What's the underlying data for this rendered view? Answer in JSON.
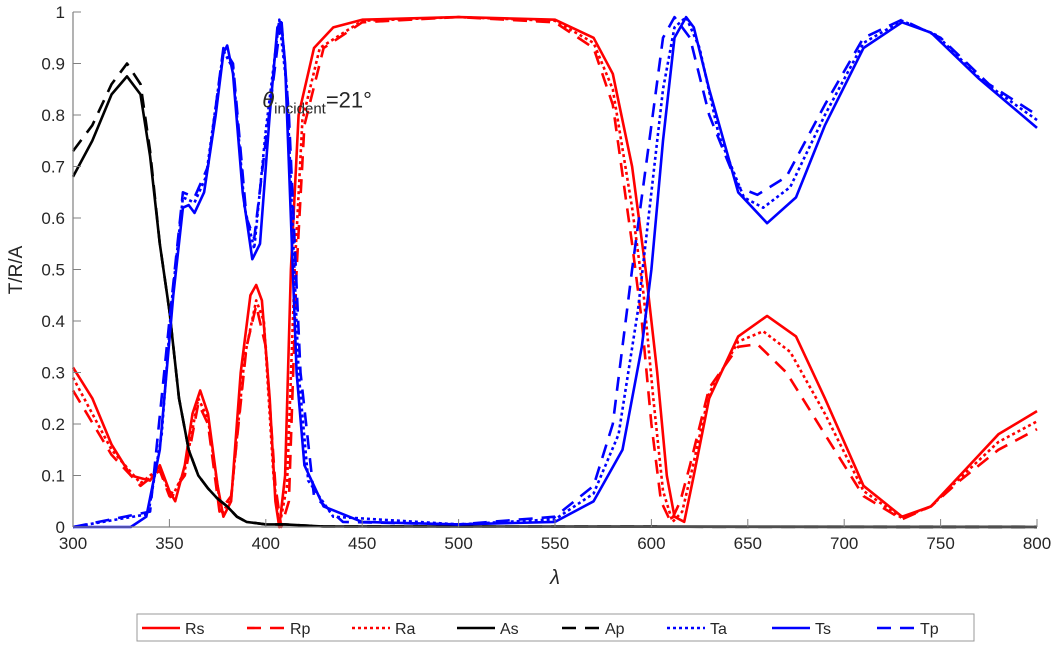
{
  "chart_data": {
    "type": "line",
    "title": "",
    "xlabel": "λ",
    "ylabel": "T/R/A",
    "xlim": [
      300,
      800
    ],
    "ylim": [
      0,
      1
    ],
    "xticks": [
      300,
      350,
      400,
      450,
      500,
      550,
      600,
      650,
      700,
      750,
      800
    ],
    "yticks": [
      0,
      0.1,
      0.2,
      0.3,
      0.4,
      0.5,
      0.6,
      0.7,
      0.8,
      0.9,
      1
    ],
    "ytick_labels": [
      "0",
      "0.1",
      "0.2",
      "0.3",
      "0.4",
      "0.5",
      "0.6",
      "0.7",
      "0.8",
      "0.9",
      "1"
    ],
    "grid": false,
    "legend_placement": "bottom-outside",
    "annotation": {
      "prefix": "θ",
      "subscript": "incident",
      "suffix": "=21°",
      "x": 450,
      "y": 0.83
    },
    "series": [
      {
        "name": "Rs",
        "color": "#ff0000",
        "style": "solid",
        "points": [
          [
            300,
            0.31
          ],
          [
            310,
            0.25
          ],
          [
            320,
            0.16
          ],
          [
            330,
            0.1
          ],
          [
            340,
            0.09
          ],
          [
            345,
            0.12
          ],
          [
            350,
            0.07
          ],
          [
            353,
            0.05
          ],
          [
            358,
            0.12
          ],
          [
            362,
            0.22
          ],
          [
            366,
            0.265
          ],
          [
            370,
            0.22
          ],
          [
            375,
            0.08
          ],
          [
            378,
            0.02
          ],
          [
            382,
            0.05
          ],
          [
            387,
            0.3
          ],
          [
            392,
            0.45
          ],
          [
            395,
            0.47
          ],
          [
            398,
            0.44
          ],
          [
            402,
            0.25
          ],
          [
            405,
            0.05
          ],
          [
            407,
            0.0
          ],
          [
            410,
            0.1
          ],
          [
            413,
            0.5
          ],
          [
            417,
            0.8
          ],
          [
            425,
            0.93
          ],
          [
            435,
            0.97
          ],
          [
            450,
            0.985
          ],
          [
            500,
            0.99
          ],
          [
            550,
            0.985
          ],
          [
            570,
            0.95
          ],
          [
            580,
            0.88
          ],
          [
            590,
            0.7
          ],
          [
            597,
            0.5
          ],
          [
            603,
            0.3
          ],
          [
            608,
            0.1
          ],
          [
            612,
            0.02
          ],
          [
            617,
            0.01
          ],
          [
            622,
            0.1
          ],
          [
            630,
            0.25
          ],
          [
            645,
            0.37
          ],
          [
            660,
            0.41
          ],
          [
            675,
            0.37
          ],
          [
            690,
            0.25
          ],
          [
            710,
            0.08
          ],
          [
            730,
            0.02
          ],
          [
            745,
            0.04
          ],
          [
            760,
            0.1
          ],
          [
            780,
            0.18
          ],
          [
            800,
            0.225
          ]
        ]
      },
      {
        "name": "Rp",
        "color": "#ff0000",
        "style": "dashed",
        "points": [
          [
            300,
            0.265
          ],
          [
            320,
            0.14
          ],
          [
            335,
            0.08
          ],
          [
            345,
            0.11
          ],
          [
            350,
            0.06
          ],
          [
            358,
            0.1
          ],
          [
            365,
            0.24
          ],
          [
            370,
            0.2
          ],
          [
            376,
            0.03
          ],
          [
            382,
            0.06
          ],
          [
            390,
            0.35
          ],
          [
            395,
            0.43
          ],
          [
            400,
            0.35
          ],
          [
            405,
            0.08
          ],
          [
            408,
            0.0
          ],
          [
            412,
            0.05
          ],
          [
            416,
            0.5
          ],
          [
            420,
            0.78
          ],
          [
            430,
            0.93
          ],
          [
            450,
            0.98
          ],
          [
            500,
            0.99
          ],
          [
            550,
            0.98
          ],
          [
            570,
            0.93
          ],
          [
            580,
            0.82
          ],
          [
            590,
            0.55
          ],
          [
            595,
            0.4
          ],
          [
            600,
            0.2
          ],
          [
            605,
            0.05
          ],
          [
            610,
            0.01
          ],
          [
            615,
            0.05
          ],
          [
            620,
            0.12
          ],
          [
            630,
            0.27
          ],
          [
            645,
            0.35
          ],
          [
            655,
            0.355
          ],
          [
            670,
            0.3
          ],
          [
            690,
            0.18
          ],
          [
            710,
            0.06
          ],
          [
            730,
            0.015
          ],
          [
            745,
            0.04
          ],
          [
            760,
            0.09
          ],
          [
            780,
            0.15
          ],
          [
            800,
            0.19
          ]
        ]
      },
      {
        "name": "Ra",
        "color": "#ff0000",
        "style": "dotted",
        "points": [
          [
            300,
            0.29
          ],
          [
            320,
            0.15
          ],
          [
            335,
            0.085
          ],
          [
            345,
            0.115
          ],
          [
            351,
            0.055
          ],
          [
            358,
            0.11
          ],
          [
            365,
            0.25
          ],
          [
            370,
            0.21
          ],
          [
            377,
            0.025
          ],
          [
            382,
            0.055
          ],
          [
            389,
            0.33
          ],
          [
            395,
            0.44
          ],
          [
            399,
            0.4
          ],
          [
            404,
            0.1
          ],
          [
            407,
            0.0
          ],
          [
            411,
            0.08
          ],
          [
            415,
            0.5
          ],
          [
            419,
            0.79
          ],
          [
            428,
            0.93
          ],
          [
            450,
            0.983
          ],
          [
            500,
            0.99
          ],
          [
            550,
            0.983
          ],
          [
            570,
            0.94
          ],
          [
            580,
            0.85
          ],
          [
            590,
            0.62
          ],
          [
            596,
            0.45
          ],
          [
            601,
            0.25
          ],
          [
            606,
            0.07
          ],
          [
            611,
            0.01
          ],
          [
            616,
            0.03
          ],
          [
            621,
            0.11
          ],
          [
            630,
            0.26
          ],
          [
            645,
            0.36
          ],
          [
            658,
            0.38
          ],
          [
            672,
            0.34
          ],
          [
            690,
            0.22
          ],
          [
            710,
            0.07
          ],
          [
            730,
            0.017
          ],
          [
            745,
            0.04
          ],
          [
            760,
            0.095
          ],
          [
            780,
            0.165
          ],
          [
            800,
            0.205
          ]
        ]
      },
      {
        "name": "As",
        "color": "#000000",
        "style": "solid",
        "points": [
          [
            300,
            0.68
          ],
          [
            310,
            0.75
          ],
          [
            320,
            0.84
          ],
          [
            328,
            0.875
          ],
          [
            335,
            0.84
          ],
          [
            340,
            0.72
          ],
          [
            345,
            0.55
          ],
          [
            350,
            0.42
          ],
          [
            355,
            0.25
          ],
          [
            360,
            0.15
          ],
          [
            365,
            0.1
          ],
          [
            370,
            0.075
          ],
          [
            375,
            0.055
          ],
          [
            380,
            0.04
          ],
          [
            385,
            0.02
          ],
          [
            390,
            0.01
          ],
          [
            400,
            0.005
          ],
          [
            410,
            0.005
          ],
          [
            430,
            0.001
          ],
          [
            800,
            0
          ]
        ]
      },
      {
        "name": "Ap",
        "color": "#000000",
        "style": "dashed",
        "points": [
          [
            300,
            0.73
          ],
          [
            310,
            0.78
          ],
          [
            320,
            0.86
          ],
          [
            328,
            0.9
          ],
          [
            335,
            0.86
          ],
          [
            340,
            0.73
          ],
          [
            345,
            0.55
          ],
          [
            350,
            0.42
          ],
          [
            355,
            0.25
          ],
          [
            360,
            0.15
          ],
          [
            365,
            0.1
          ],
          [
            370,
            0.075
          ],
          [
            375,
            0.055
          ],
          [
            380,
            0.04
          ],
          [
            385,
            0.02
          ],
          [
            390,
            0.01
          ],
          [
            400,
            0.005
          ],
          [
            410,
            0.005
          ],
          [
            430,
            0.001
          ],
          [
            800,
            0
          ]
        ]
      },
      {
        "name": "Ta",
        "color": "#0000ff",
        "style": "dotted",
        "points": [
          [
            300,
            0
          ],
          [
            339,
            0.025
          ],
          [
            346,
            0.18
          ],
          [
            351,
            0.43
          ],
          [
            357,
            0.64
          ],
          [
            363,
            0.63
          ],
          [
            369,
            0.68
          ],
          [
            378,
            0.925
          ],
          [
            383,
            0.89
          ],
          [
            389,
            0.62
          ],
          [
            394,
            0.54
          ],
          [
            400,
            0.77
          ],
          [
            407,
            0.985
          ],
          [
            411,
            0.85
          ],
          [
            417,
            0.3
          ],
          [
            422,
            0.09
          ],
          [
            435,
            0.02
          ],
          [
            500,
            0.005
          ],
          [
            550,
            0.015
          ],
          [
            570,
            0.065
          ],
          [
            583,
            0.18
          ],
          [
            593,
            0.42
          ],
          [
            600,
            0.65
          ],
          [
            606,
            0.85
          ],
          [
            612,
            0.97
          ],
          [
            618,
            0.99
          ],
          [
            625,
            0.93
          ],
          [
            635,
            0.76
          ],
          [
            648,
            0.64
          ],
          [
            658,
            0.62
          ],
          [
            672,
            0.66
          ],
          [
            690,
            0.8
          ],
          [
            710,
            0.94
          ],
          [
            730,
            0.983
          ],
          [
            748,
            0.955
          ],
          [
            772,
            0.865
          ],
          [
            800,
            0.79
          ]
        ]
      },
      {
        "name": "Ts",
        "color": "#0000ff",
        "style": "solid",
        "points": [
          [
            300,
            0
          ],
          [
            330,
            0
          ],
          [
            338,
            0.02
          ],
          [
            345,
            0.15
          ],
          [
            352,
            0.45
          ],
          [
            357,
            0.62
          ],
          [
            360,
            0.625
          ],
          [
            363,
            0.61
          ],
          [
            368,
            0.65
          ],
          [
            374,
            0.8
          ],
          [
            378,
            0.92
          ],
          [
            380,
            0.935
          ],
          [
            383,
            0.88
          ],
          [
            388,
            0.65
          ],
          [
            393,
            0.52
          ],
          [
            397,
            0.55
          ],
          [
            402,
            0.8
          ],
          [
            406,
            0.97
          ],
          [
            408,
            0.98
          ],
          [
            410,
            0.9
          ],
          [
            413,
            0.6
          ],
          [
            416,
            0.3
          ],
          [
            420,
            0.12
          ],
          [
            430,
            0.04
          ],
          [
            450,
            0.01
          ],
          [
            500,
            0.005
          ],
          [
            550,
            0.01
          ],
          [
            570,
            0.05
          ],
          [
            585,
            0.15
          ],
          [
            595,
            0.35
          ],
          [
            600,
            0.5
          ],
          [
            606,
            0.75
          ],
          [
            612,
            0.95
          ],
          [
            618,
            0.99
          ],
          [
            622,
            0.97
          ],
          [
            630,
            0.85
          ],
          [
            645,
            0.65
          ],
          [
            660,
            0.59
          ],
          [
            675,
            0.64
          ],
          [
            690,
            0.78
          ],
          [
            710,
            0.93
          ],
          [
            730,
            0.98
          ],
          [
            745,
            0.96
          ],
          [
            770,
            0.87
          ],
          [
            800,
            0.775
          ]
        ]
      },
      {
        "name": "Tp",
        "color": "#0000ff",
        "style": "dashed",
        "points": [
          [
            300,
            0
          ],
          [
            340,
            0.03
          ],
          [
            350,
            0.4
          ],
          [
            357,
            0.65
          ],
          [
            363,
            0.64
          ],
          [
            370,
            0.7
          ],
          [
            378,
            0.93
          ],
          [
            383,
            0.9
          ],
          [
            390,
            0.6
          ],
          [
            394,
            0.56
          ],
          [
            400,
            0.75
          ],
          [
            408,
            0.99
          ],
          [
            412,
            0.8
          ],
          [
            418,
            0.3
          ],
          [
            425,
            0.06
          ],
          [
            440,
            0.01
          ],
          [
            500,
            0.005
          ],
          [
            550,
            0.02
          ],
          [
            570,
            0.08
          ],
          [
            580,
            0.2
          ],
          [
            590,
            0.5
          ],
          [
            600,
            0.78
          ],
          [
            606,
            0.95
          ],
          [
            612,
            0.99
          ],
          [
            620,
            0.95
          ],
          [
            630,
            0.8
          ],
          [
            645,
            0.66
          ],
          [
            655,
            0.645
          ],
          [
            670,
            0.68
          ],
          [
            690,
            0.82
          ],
          [
            710,
            0.95
          ],
          [
            730,
            0.985
          ],
          [
            750,
            0.95
          ],
          [
            775,
            0.86
          ],
          [
            800,
            0.8
          ]
        ]
      }
    ]
  }
}
